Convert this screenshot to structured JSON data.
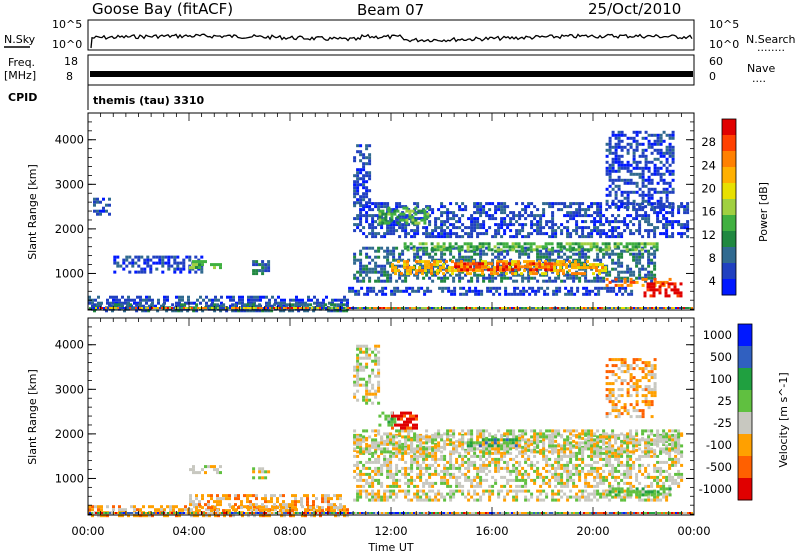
{
  "header": {
    "station": "Goose Bay (fitACF)",
    "beam": "Beam 07",
    "date": "25/Oct/2010"
  },
  "top_panels": {
    "nsky_label": "N.Sky",
    "nsearch_label": "N.Search",
    "nsearch_legend": "........",
    "nsky_ticks": [
      "10^5",
      "10^0"
    ],
    "freq_label": "Freq.",
    "freq_unit": "[MHz]",
    "freq_ticks": [
      "18",
      "8"
    ],
    "nave_label": "Nave",
    "nave_legend": "....",
    "nave_ticks": [
      "60",
      "0"
    ],
    "cpid_label": "CPID",
    "cpid_text": "themis (tau) 3310"
  },
  "chart_data": [
    {
      "type": "heatmap",
      "name": "power",
      "ylabel": "Slant Range [km]",
      "ylim": [
        180,
        4600
      ],
      "yticks": [
        1000,
        2000,
        3000,
        4000
      ],
      "xlim": [
        0,
        24
      ],
      "colorbar": {
        "label": "Power [dB]",
        "tick_labels": [
          "28",
          "24",
          "20",
          "16",
          "12",
          "8",
          "4"
        ],
        "colors": [
          "#e00000",
          "#ff4000",
          "#ff8000",
          "#ffb000",
          "#e8e000",
          "#a0d040",
          "#40b040",
          "#208840",
          "#306a90",
          "#2040c0",
          "#0018ff"
        ]
      }
    },
    {
      "type": "heatmap",
      "name": "velocity",
      "ylabel": "Slant Range [km]",
      "ylim": [
        180,
        4600
      ],
      "yticks": [
        1000,
        2000,
        3000,
        4000
      ],
      "xlim": [
        0,
        24
      ],
      "colorbar": {
        "label": "Velocity [m s^-1]",
        "tick_labels": [
          "1000",
          "500",
          "100",
          "25",
          "-25",
          "-100",
          "-500",
          "-1000"
        ],
        "colors": [
          "#0018ff",
          "#3060c0",
          "#20a040",
          "#60c040",
          "#c8c8c0",
          "#ffa000",
          "#ff6000",
          "#e00000"
        ]
      }
    }
  ],
  "x_axis": {
    "ticks": [
      "00:00",
      "04:00",
      "08:00",
      "12:00",
      "16:00",
      "20:00",
      "00:00"
    ],
    "label": "Time UT"
  }
}
